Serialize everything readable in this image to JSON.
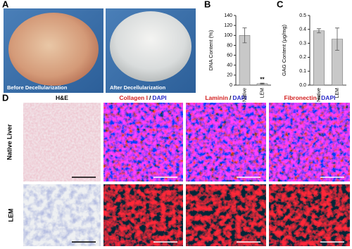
{
  "panel_labels": [
    "A",
    "B",
    "C",
    "D"
  ],
  "photo_captions": [
    "Before Decellularization",
    "After Decellularization"
  ],
  "chart_data": [
    {
      "type": "bar",
      "y_label": "DNA Content (%)",
      "categories": [
        "Native",
        "LEM"
      ],
      "values": [
        100,
        3
      ],
      "errors": [
        15,
        1
      ],
      "color": "#c8c8c8",
      "ylim": [
        0,
        140
      ],
      "yticks": [
        0,
        20,
        40,
        60,
        80,
        100,
        120,
        140
      ],
      "annotation": "**"
    },
    {
      "type": "bar",
      "y_label": "GAG Content (μg/mg)",
      "categories": [
        "Native",
        "LEM"
      ],
      "values": [
        0.39,
        0.33
      ],
      "errors": [
        0.015,
        0.08
      ],
      "color": "#c8c8c8",
      "ylim": [
        0,
        0.5
      ],
      "yticks": [
        {
          "value": 0,
          "label": "0.0"
        },
        0.1,
        0.2,
        0.3,
        0.4,
        0.5
      ]
    }
  ],
  "panel_d": {
    "column_headers": [
      [
        "H&E"
      ],
      [
        "Collagen I",
        "/",
        "DAPI"
      ],
      [
        "Laminin",
        "/",
        "DAPI"
      ],
      [
        "Fibronectin",
        "/",
        "DAPI"
      ]
    ],
    "row_labels": [
      "Native Liver",
      "LEM"
    ]
  }
}
